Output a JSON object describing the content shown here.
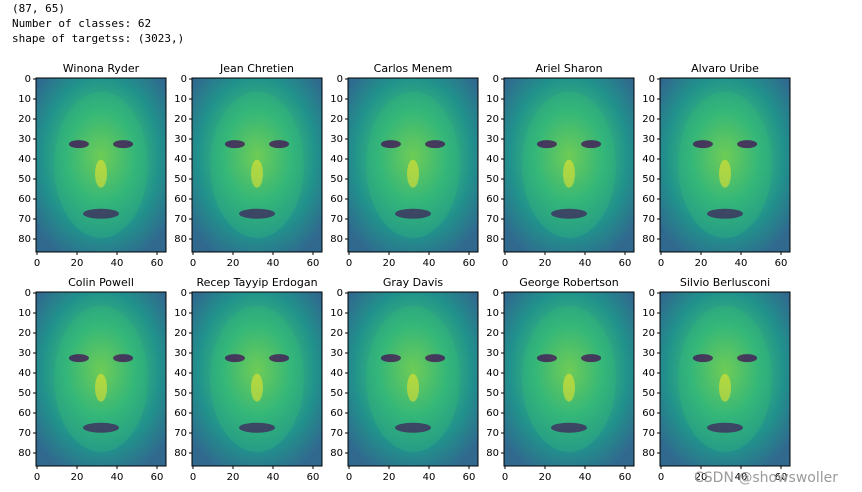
{
  "output_lines": [
    "(87, 65)",
    "Number of classes: 62",
    "shape of targetss: (3023,)"
  ],
  "panels": [
    {
      "title": "Winona Ryder"
    },
    {
      "title": "Jean Chretien"
    },
    {
      "title": "Carlos Menem"
    },
    {
      "title": "Ariel Sharon"
    },
    {
      "title": "Alvaro Uribe"
    },
    {
      "title": "Colin Powell"
    },
    {
      "title": "Recep Tayyip Erdogan"
    },
    {
      "title": "Gray Davis"
    },
    {
      "title": "George Robertson"
    },
    {
      "title": "Silvio Berlusconi"
    }
  ],
  "image_shape": [
    87,
    65
  ],
  "yticks": [
    0,
    10,
    20,
    30,
    40,
    50,
    60,
    70,
    80
  ],
  "xticks": [
    0,
    20,
    40,
    60
  ],
  "colormap": [
    "#440154",
    "#31688e",
    "#35b779",
    "#fde725"
  ],
  "watermark": "CSDN @showswoller"
}
